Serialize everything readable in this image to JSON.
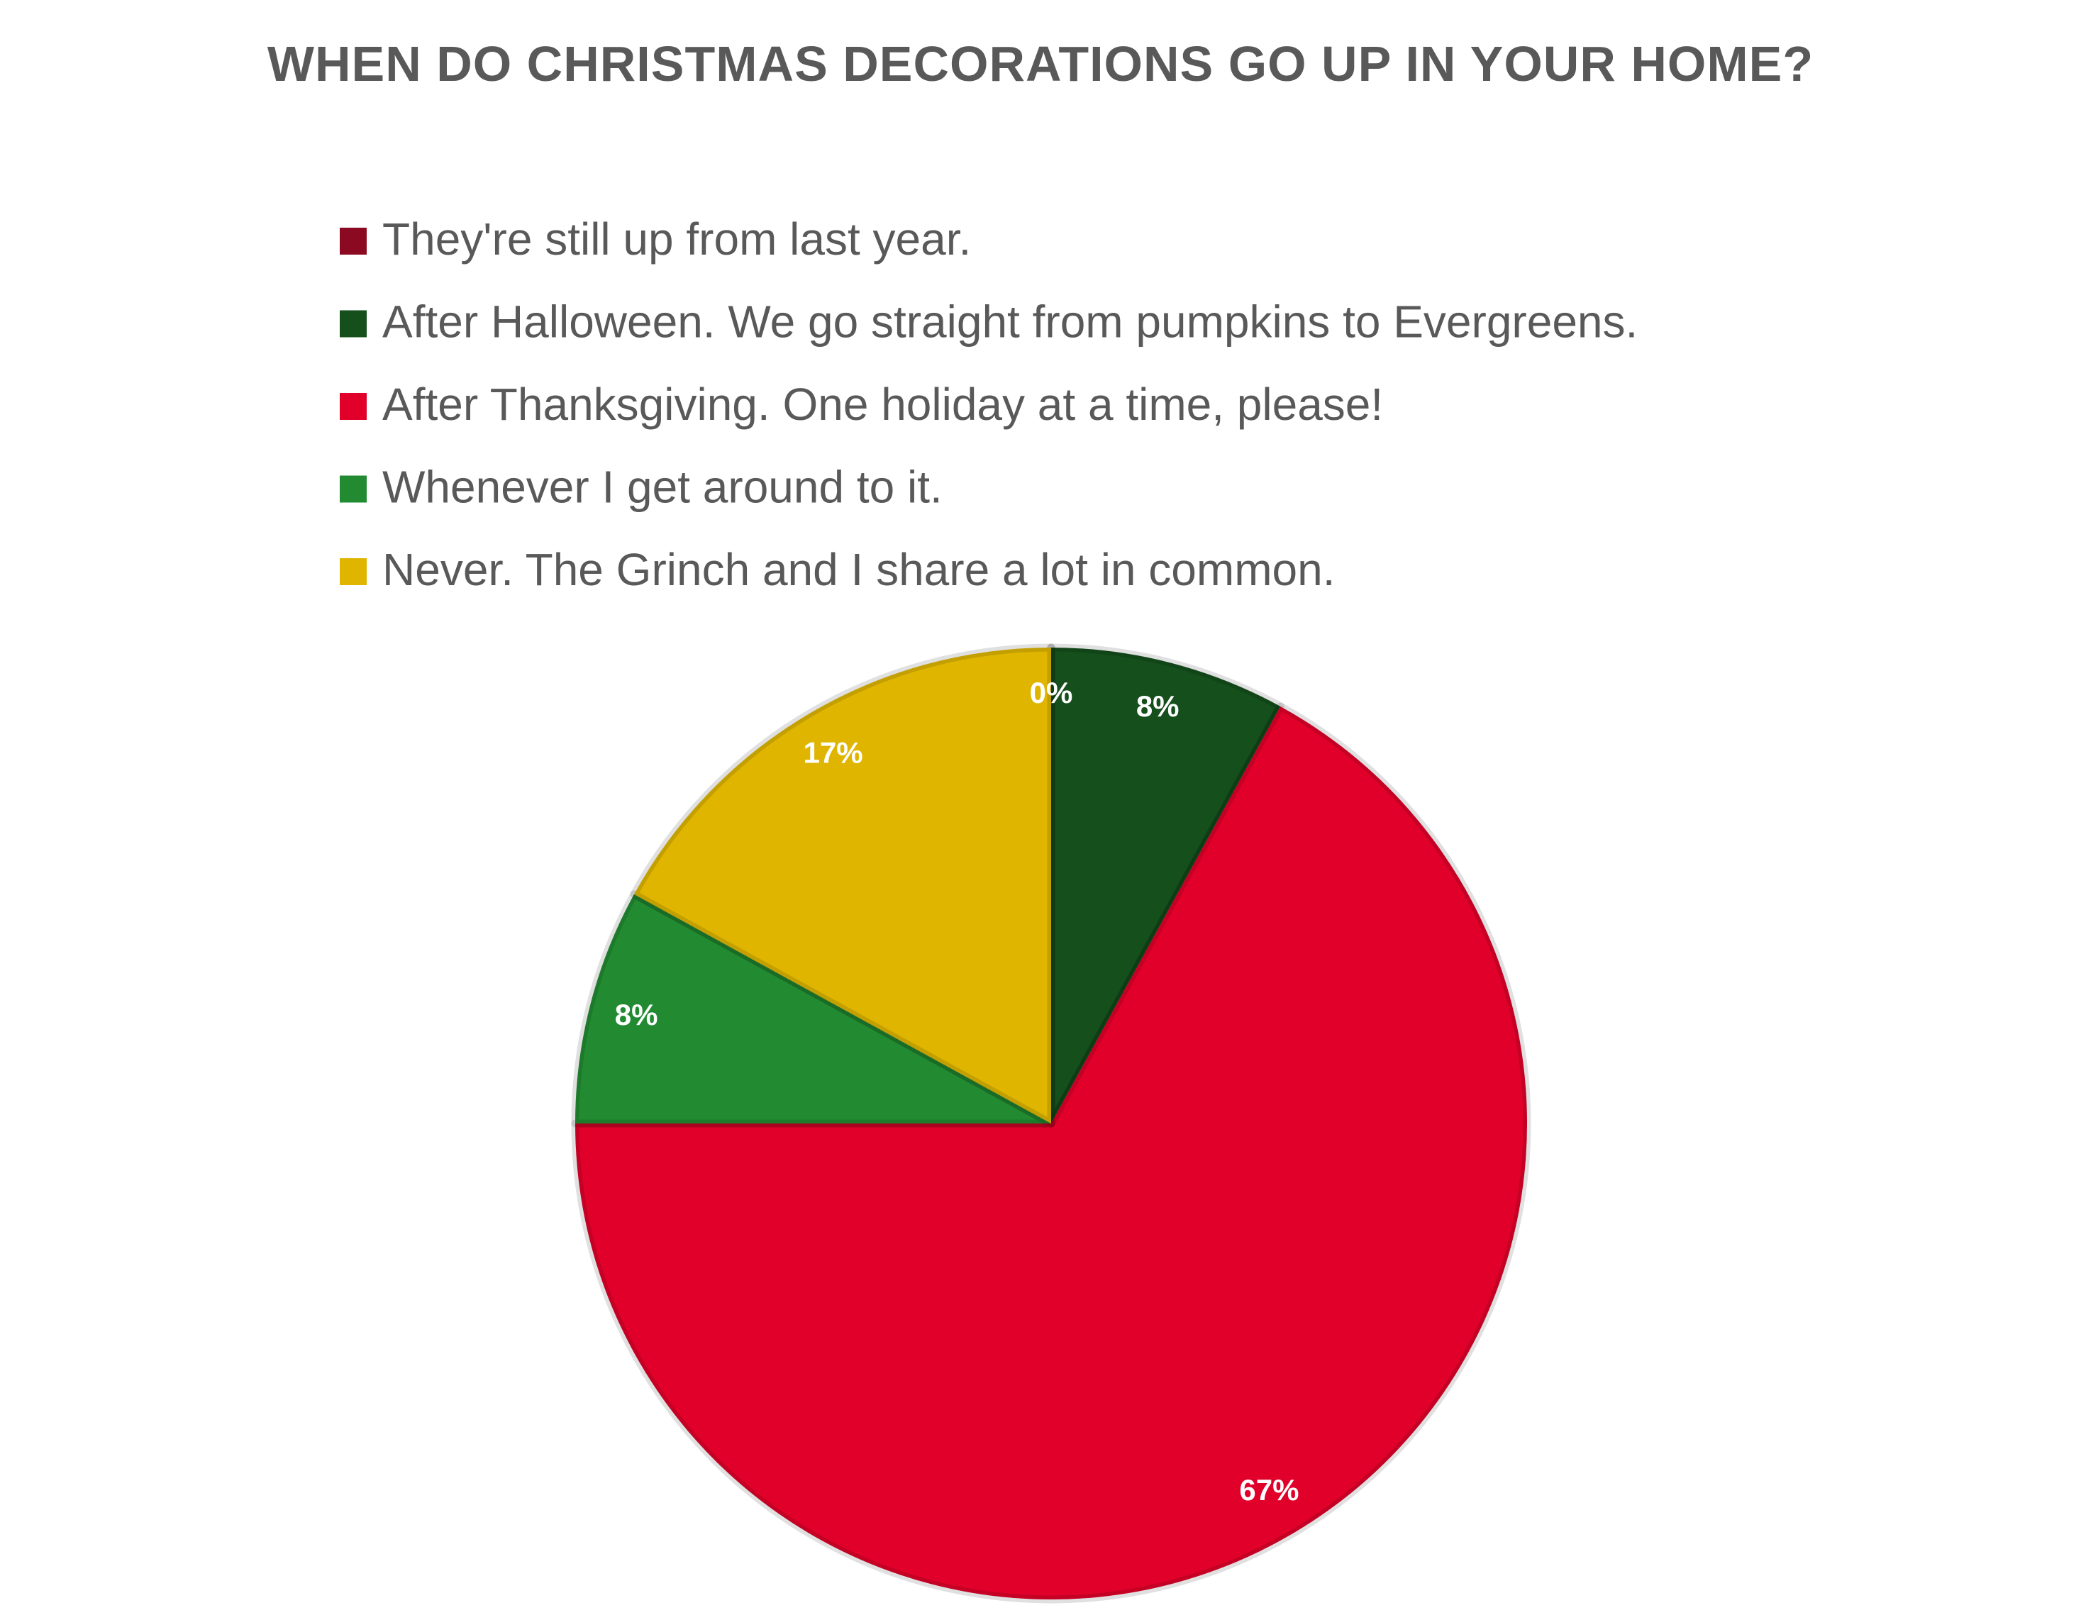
{
  "chart_data": {
    "type": "pie",
    "title": "WHEN DO CHRISTMAS DECORATIONS GO UP IN YOUR HOME?",
    "categories": [
      "They're still up from last year.",
      "After Halloween. We go straight from pumpkins to Evergreens.",
      "After Thanksgiving. One holiday at a time, please!",
      "Whenever I get around to it.",
      "Never. The Grinch and I share a lot in common."
    ],
    "values": [
      0,
      8,
      67,
      8,
      17
    ],
    "value_labels": [
      "0%",
      "8%",
      "67%",
      "8%",
      "17%"
    ],
    "colors": [
      "#8b0a22",
      "#144f1c",
      "#e0002a",
      "#228b32",
      "#dfb500"
    ]
  }
}
